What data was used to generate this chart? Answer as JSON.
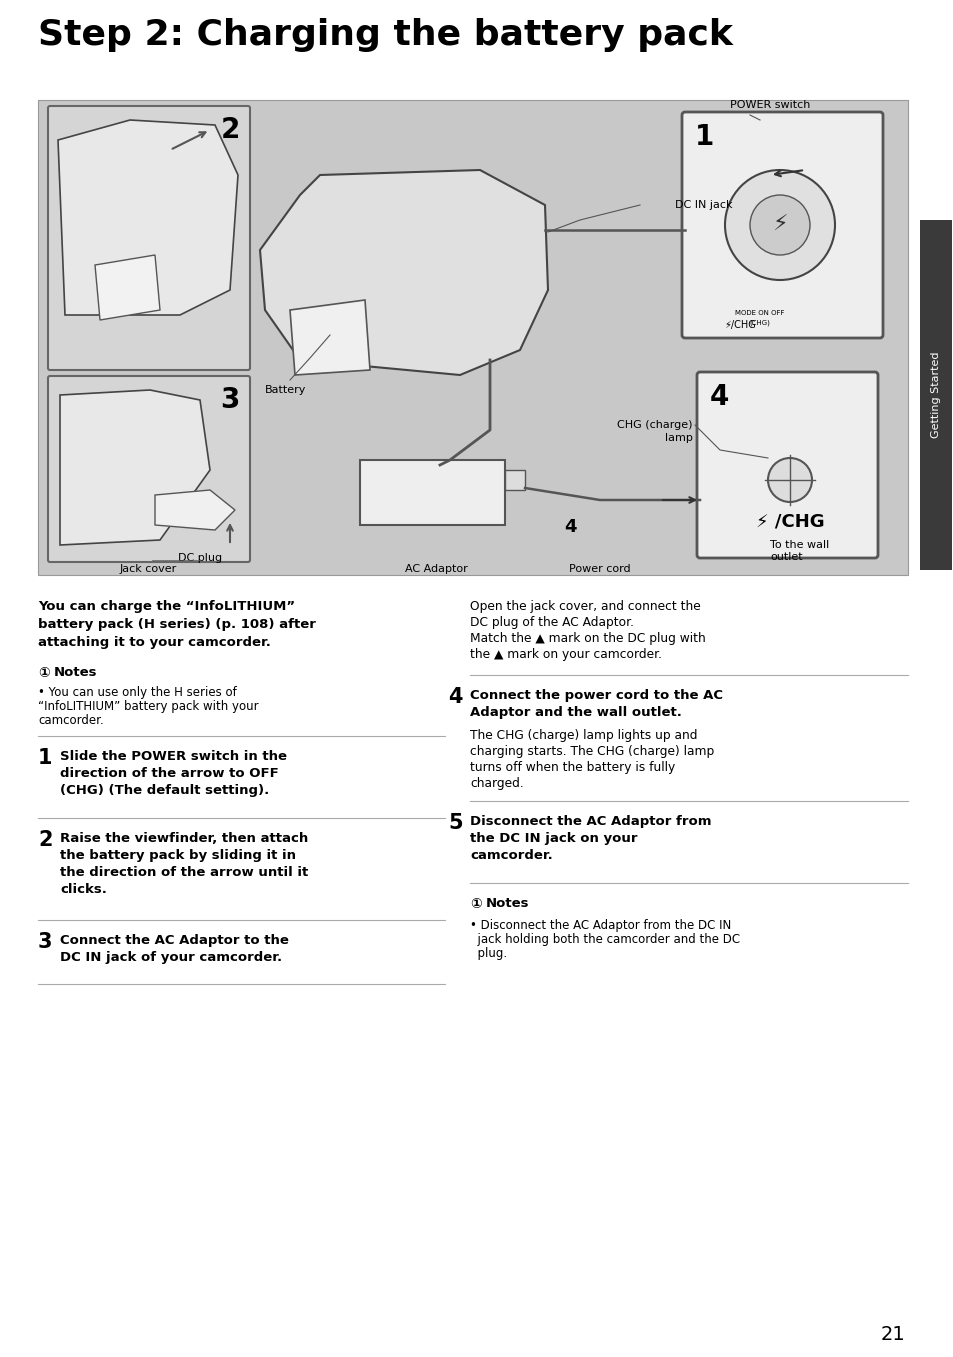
{
  "title": "Step 2: Charging the battery pack",
  "title_fontsize": 26,
  "page_number": "21",
  "bg_color": "#ffffff",
  "diagram_bg": "#c8c8c8",
  "sidebar_color": "#3a3a3a",
  "sidebar_text": "Getting Started",
  "intro_bold_text_line1": "You can charge the “InfoLITHIUM”",
  "intro_bold_text_line2": "battery pack (H series) (p. 108) after",
  "intro_bold_text_line3": "attaching it to your camcorder.",
  "notes_icon": "①",
  "notes_label": "Notes",
  "notes1_bullet": "• You can use only the H series of",
  "notes1_line2": "“InfoLITHIUM” battery pack with your",
  "notes1_line3": "camcorder.",
  "step1_num": "1",
  "step1_line1": "Slide the POWER switch in the",
  "step1_line2": "direction of the arrow to OFF",
  "step1_line3": "(CHG) (The default setting).",
  "step2_num": "2",
  "step2_line1": "Raise the viewfinder, then attach",
  "step2_line2": "the battery pack by sliding it in",
  "step2_line3": "the direction of the arrow until it",
  "step2_line4": "clicks.",
  "step3_num": "3",
  "step3_line1": "Connect the AC Adaptor to the",
  "step3_line2": "DC IN jack of your camcorder.",
  "step3_cont_line1": "Open the jack cover, and connect the",
  "step3_cont_line2": "DC plug of the AC Adaptor.",
  "step3_cont_line3": "Match the ▲ mark on the DC plug with",
  "step3_cont_line4": "the ▲ mark on your camcorder.",
  "step4_num": "4",
  "step4_line1": "Connect the power cord to the AC",
  "step4_line2": "Adaptor and the wall outlet.",
  "step4_norm_line1": "The CHG (charge) lamp lights up and",
  "step4_norm_line2": "charging starts. The CHG (charge) lamp",
  "step4_norm_line3": "turns off when the battery is fully",
  "step4_norm_line4": "charged.",
  "step5_num": "5",
  "step5_line1": "Disconnect the AC Adaptor from",
  "step5_line2": "the DC IN jack on your",
  "step5_line3": "camcorder.",
  "notes2_bullet": "• Disconnect the AC Adaptor from the DC IN",
  "notes2_line2": "  jack holding both the camcorder and the DC",
  "notes2_line3": "  plug.",
  "diag_label_power_switch": "POWER switch",
  "diag_label_battery": "Battery",
  "diag_label_dc_in": "DC IN jack",
  "diag_label_chg_lamp_1": "CHG (charge)",
  "diag_label_chg_lamp_2": "lamp",
  "diag_label_dc_plug": "DC plug",
  "diag_label_ac_adaptor": "AC Adaptor",
  "diag_label_power_cord": "Power cord",
  "diag_label_to_wall_1": "To the wall",
  "diag_label_to_wall_2": "outlet",
  "diag_label_jack_cover": "Jack cover",
  "diag_num_2": "2",
  "diag_num_3": "3",
  "diag_num_1": "1",
  "diag_num_4a": "4",
  "diag_num_4b": "4",
  "diag_chg_label": "⚡/CHG"
}
